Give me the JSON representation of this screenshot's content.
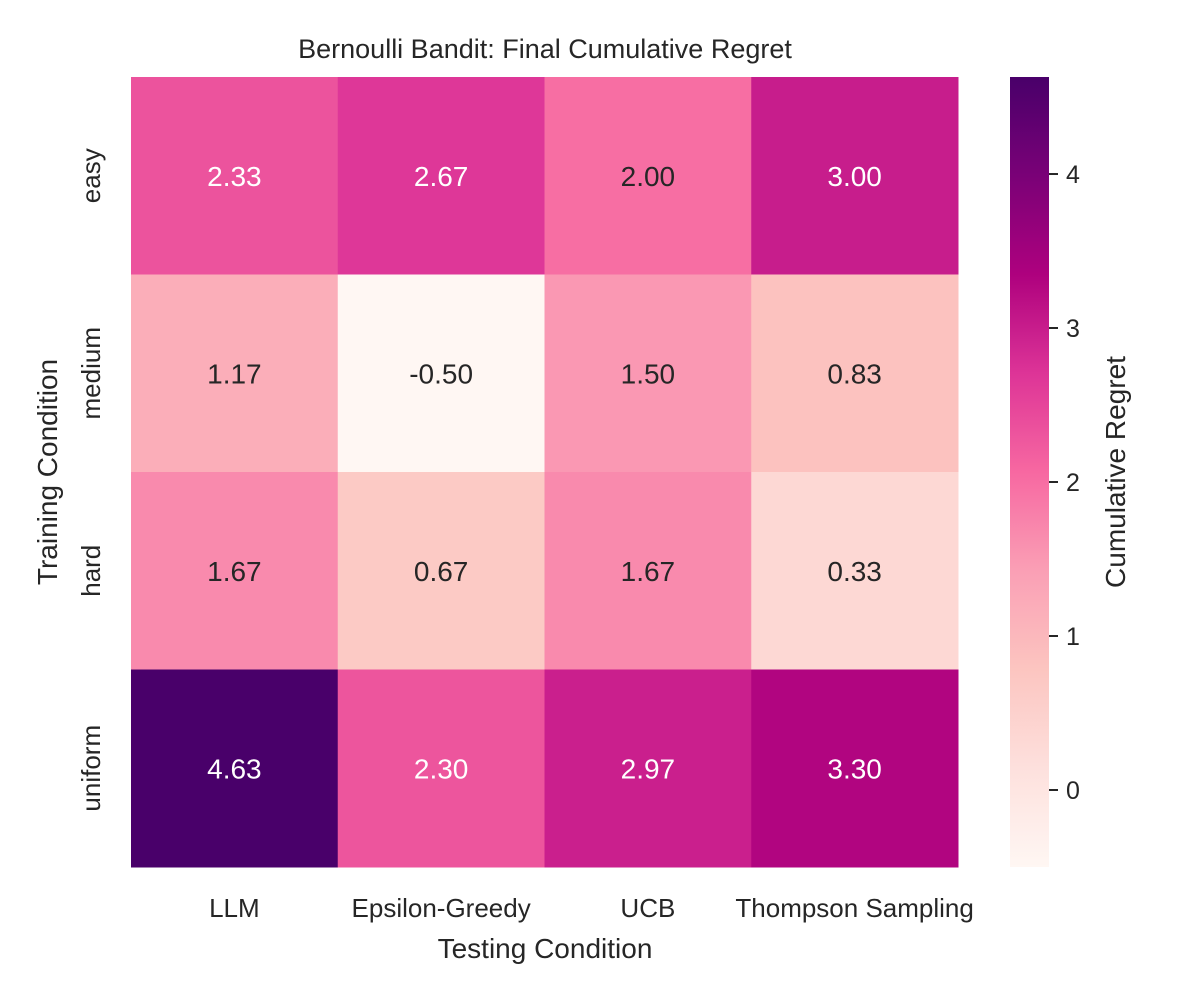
{
  "chart_data": {
    "type": "heatmap",
    "title": "Bernoulli Bandit: Final Cumulative Regret",
    "xlabel": "Testing Condition",
    "ylabel": "Training Condition",
    "x_categories": [
      "LLM",
      "Epsilon-Greedy",
      "UCB",
      "Thompson Sampling"
    ],
    "y_categories": [
      "easy",
      "medium",
      "hard",
      "uniform"
    ],
    "values": [
      [
        2.33,
        2.67,
        2.0,
        3.0
      ],
      [
        1.17,
        -0.5,
        1.5,
        0.83
      ],
      [
        1.67,
        0.67,
        1.67,
        0.33
      ],
      [
        4.63,
        2.3,
        2.97,
        3.3
      ]
    ],
    "value_labels": [
      [
        "2.33",
        "2.67",
        "2.00",
        "3.00"
      ],
      [
        "1.17",
        "-0.50",
        "1.50",
        "0.83"
      ],
      [
        "1.67",
        "0.67",
        "1.67",
        "0.33"
      ],
      [
        "4.63",
        "2.30",
        "2.97",
        "3.30"
      ]
    ],
    "colorbar": {
      "label": "Cumulative Regret",
      "range": [
        -0.5,
        4.63
      ],
      "ticks": [
        0,
        1,
        2,
        3,
        4
      ],
      "tick_labels": [
        "0",
        "1",
        "2",
        "3",
        "4"
      ]
    },
    "colormap": "RdPu",
    "colormap_stops": [
      "#fff7f3",
      "#fde0dd",
      "#fcc5c0",
      "#fa9fb5",
      "#f768a1",
      "#dd3497",
      "#ae017e",
      "#7a0177",
      "#49006a"
    ],
    "light_text_color": "#ffffff",
    "dark_text_color": "#262626"
  }
}
